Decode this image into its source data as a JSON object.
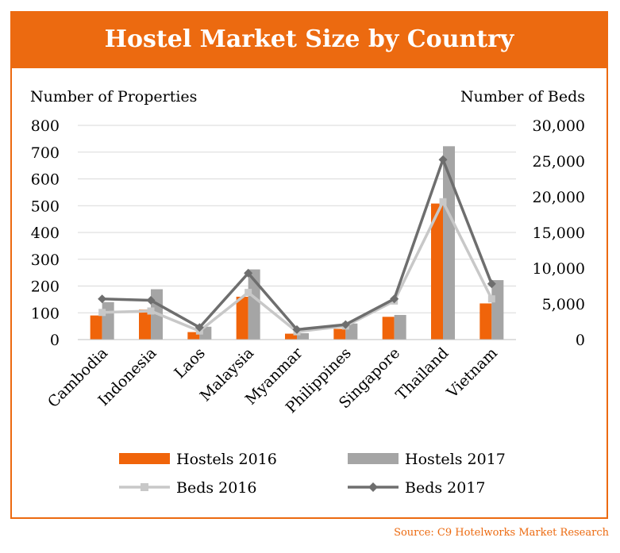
{
  "title": "Hostel Market Size by Country",
  "source": "Source: C9 Hotelworks Market Research",
  "colors": {
    "accent": "#ec6a10",
    "hostels_2016": "#f0640a",
    "hostels_2017": "#a5a5a5",
    "beds_2016": "#c8c8c8",
    "beds_2017": "#6e6e6e",
    "grid": "#d9d9d9"
  },
  "chart_data": {
    "type": "bar",
    "categories": [
      "Cambodia",
      "Indonesia",
      "Laos",
      "Malaysia",
      "Myanmar",
      "Philippines",
      "Singapore",
      "Thailand",
      "Vietnam"
    ],
    "y_left": {
      "label": "Number of Properties",
      "ylim": [
        0,
        800
      ],
      "ticks": [
        "0",
        "100",
        "200",
        "300",
        "400",
        "500",
        "600",
        "700",
        "800"
      ]
    },
    "y_right": {
      "label": "Number of Beds",
      "ylim": [
        0,
        30000
      ],
      "ticks": [
        "0",
        "5,000",
        "10,000",
        "15,000",
        "20,000",
        "25,000",
        "30,000"
      ]
    },
    "grid": true,
    "legend_position": "bottom",
    "series": [
      {
        "name": "Hostels 2016",
        "type": "bar",
        "axis": "left",
        "values": [
          90,
          112,
          28,
          160,
          22,
          40,
          85,
          508,
          135
        ]
      },
      {
        "name": "Hostels 2017",
        "type": "bar",
        "axis": "left",
        "values": [
          140,
          188,
          48,
          262,
          24,
          60,
          92,
          722,
          222
        ]
      },
      {
        "name": "Beds 2016",
        "type": "line",
        "axis": "right",
        "marker": "square",
        "values": [
          3800,
          4000,
          1200,
          6600,
          1100,
          1900,
          5400,
          19300,
          5700
        ]
      },
      {
        "name": "Beds 2017",
        "type": "line",
        "axis": "right",
        "marker": "diamond",
        "values": [
          5700,
          5500,
          1700,
          9300,
          1400,
          2100,
          5700,
          25200,
          7800
        ]
      }
    ]
  }
}
